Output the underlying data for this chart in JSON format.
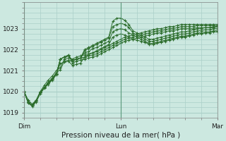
{
  "title": "Pression niveau de la mer( hPa )",
  "bg_color": "#cce8e0",
  "grid_color": "#aacfc8",
  "line_color": "#2d6e2d",
  "xlim": [
    0,
    48
  ],
  "ylim": [
    1018.75,
    1024.25
  ],
  "yticks": [
    1019,
    1020,
    1021,
    1022,
    1023
  ],
  "xtick_labels": [
    "Dim",
    "Lun",
    "Mar"
  ],
  "xtick_positions": [
    0,
    24,
    48
  ],
  "vline_positions": [
    0,
    24,
    48
  ],
  "series": [
    [
      1020.0,
      1019.6,
      1019.4,
      1019.6,
      1020.0,
      1020.3,
      1020.55,
      1020.75,
      1021.0,
      1021.15,
      1021.55,
      1021.6,
      1021.55,
      1021.65,
      1021.7,
      1021.75,
      1021.8,
      1021.85,
      1021.9,
      1022.0,
      1022.1,
      1022.2,
      1022.3,
      1022.4,
      1022.5,
      1022.6,
      1022.65,
      1022.7,
      1022.75,
      1022.8,
      1022.85,
      1022.9,
      1022.95,
      1023.0,
      1023.0,
      1023.05,
      1023.1,
      1023.1,
      1023.15,
      1023.2,
      1023.2,
      1023.2,
      1023.2,
      1023.2,
      1023.2,
      1023.2,
      1023.2,
      1023.2,
      1023.2
    ],
    [
      1020.0,
      1019.5,
      1019.35,
      1019.55,
      1019.95,
      1020.2,
      1020.45,
      1020.65,
      1020.9,
      1021.05,
      1021.45,
      1021.5,
      1021.45,
      1021.55,
      1021.6,
      1021.65,
      1021.7,
      1021.75,
      1021.8,
      1021.9,
      1022.0,
      1022.1,
      1022.2,
      1022.3,
      1022.4,
      1022.5,
      1022.55,
      1022.6,
      1022.65,
      1022.7,
      1022.75,
      1022.8,
      1022.85,
      1022.9,
      1022.9,
      1022.95,
      1023.0,
      1023.0,
      1023.05,
      1023.1,
      1023.1,
      1023.1,
      1023.1,
      1023.15,
      1023.15,
      1023.15,
      1023.15,
      1023.15,
      1023.15
    ],
    [
      1020.0,
      1019.45,
      1019.3,
      1019.5,
      1019.9,
      1020.15,
      1020.35,
      1020.55,
      1020.8,
      1021.55,
      1021.65,
      1021.75,
      1021.35,
      1021.45,
      1021.5,
      1021.55,
      1021.6,
      1021.65,
      1021.7,
      1021.8,
      1021.9,
      1022.0,
      1022.1,
      1022.2,
      1022.3,
      1022.4,
      1022.45,
      1022.5,
      1022.55,
      1022.6,
      1022.65,
      1022.7,
      1022.75,
      1022.8,
      1022.8,
      1022.85,
      1022.9,
      1022.9,
      1022.95,
      1023.0,
      1023.0,
      1023.0,
      1023.0,
      1023.05,
      1023.05,
      1023.05,
      1023.05,
      1023.05,
      1023.1
    ],
    [
      1020.0,
      1019.5,
      1019.35,
      1019.55,
      1019.95,
      1020.2,
      1020.4,
      1020.6,
      1020.85,
      1021.55,
      1021.65,
      1021.7,
      1021.5,
      1021.55,
      1021.6,
      1022.0,
      1022.1,
      1022.2,
      1022.3,
      1022.4,
      1022.5,
      1022.6,
      1023.35,
      1023.5,
      1023.5,
      1023.4,
      1023.2,
      1022.9,
      1022.8,
      1022.7,
      1022.6,
      1022.5,
      1022.5,
      1022.55,
      1022.6,
      1022.65,
      1022.7,
      1022.75,
      1022.8,
      1022.85,
      1022.85,
      1022.9,
      1022.95,
      1023.0,
      1023.0,
      1023.05,
      1023.05,
      1023.1,
      1023.1
    ],
    [
      1020.0,
      1019.5,
      1019.35,
      1019.55,
      1019.95,
      1020.2,
      1020.4,
      1020.6,
      1020.85,
      1021.55,
      1021.65,
      1021.7,
      1021.5,
      1021.55,
      1021.6,
      1021.95,
      1022.05,
      1022.15,
      1022.25,
      1022.35,
      1022.45,
      1022.55,
      1023.1,
      1023.2,
      1023.25,
      1023.2,
      1023.05,
      1022.8,
      1022.7,
      1022.6,
      1022.5,
      1022.4,
      1022.4,
      1022.45,
      1022.5,
      1022.55,
      1022.6,
      1022.65,
      1022.7,
      1022.75,
      1022.75,
      1022.8,
      1022.85,
      1022.9,
      1022.9,
      1022.95,
      1022.95,
      1023.0,
      1023.0
    ],
    [
      1020.0,
      1019.5,
      1019.35,
      1019.55,
      1019.95,
      1020.2,
      1020.4,
      1020.6,
      1020.85,
      1021.55,
      1021.65,
      1021.7,
      1021.5,
      1021.55,
      1021.6,
      1021.85,
      1021.9,
      1022.05,
      1022.1,
      1022.2,
      1022.3,
      1022.4,
      1022.85,
      1022.95,
      1023.0,
      1022.95,
      1022.8,
      1022.7,
      1022.6,
      1022.5,
      1022.4,
      1022.3,
      1022.3,
      1022.35,
      1022.4,
      1022.45,
      1022.5,
      1022.55,
      1022.6,
      1022.65,
      1022.65,
      1022.7,
      1022.75,
      1022.8,
      1022.8,
      1022.85,
      1022.85,
      1022.9,
      1022.9
    ],
    [
      1020.0,
      1019.5,
      1019.35,
      1019.55,
      1019.95,
      1020.2,
      1020.4,
      1020.6,
      1020.85,
      1021.35,
      1021.4,
      1021.45,
      1021.25,
      1021.3,
      1021.35,
      1021.65,
      1021.75,
      1021.85,
      1021.95,
      1022.05,
      1022.15,
      1022.25,
      1022.6,
      1022.7,
      1022.75,
      1022.7,
      1022.6,
      1022.5,
      1022.45,
      1022.4,
      1022.35,
      1022.25,
      1022.25,
      1022.3,
      1022.35,
      1022.4,
      1022.45,
      1022.5,
      1022.55,
      1022.6,
      1022.6,
      1022.65,
      1022.7,
      1022.75,
      1022.75,
      1022.8,
      1022.8,
      1022.85,
      1022.85
    ]
  ]
}
